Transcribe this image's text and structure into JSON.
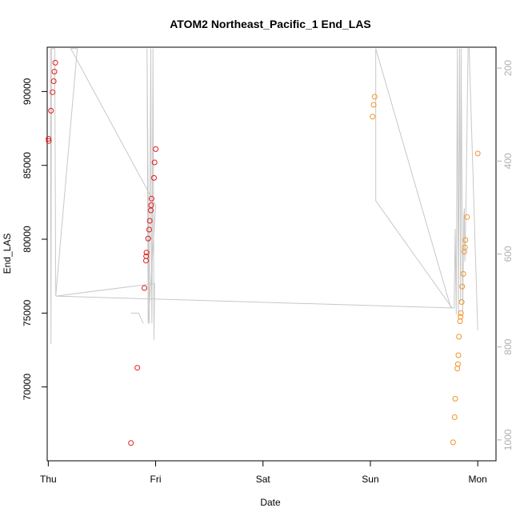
{
  "chart_data": {
    "type": "scatter",
    "title": "ATOM2 Northeast_Pacific_1 End_LAS",
    "xlabel": "Date",
    "ylabel": "End_LAS",
    "x_ticks": [
      "Thu",
      "Fri",
      "Sat",
      "Sun",
      "Mon"
    ],
    "y_ticks": [
      70000,
      75000,
      80000,
      85000,
      90000
    ],
    "y2_ticks": [
      200,
      400,
      600,
      800,
      1000
    ],
    "xlim": [
      -0.01,
      4.17
    ],
    "ylim": [
      65000,
      93000
    ],
    "y2lim": [
      1045,
      155
    ],
    "colors": {
      "series1": "#e31a1c",
      "series2": "#f5922a",
      "depth_line": "#c8c8c8"
    },
    "series": [
      {
        "points": [
          {
            "x": 0.003,
            "y": 86800
          },
          {
            "x": 0.005,
            "y": 86650
          },
          {
            "x": 0.025,
            "y": 88700
          },
          {
            "x": 0.04,
            "y": 89950
          },
          {
            "x": 0.05,
            "y": 90700
          },
          {
            "x": 0.057,
            "y": 91350
          },
          {
            "x": 0.065,
            "y": 91950
          },
          {
            "x": 0.77,
            "y": 66200
          },
          {
            "x": 0.83,
            "y": 71300
          },
          {
            "x": 0.895,
            "y": 76700
          },
          {
            "x": 0.91,
            "y": 78550
          },
          {
            "x": 0.912,
            "y": 78850
          },
          {
            "x": 0.915,
            "y": 79100
          },
          {
            "x": 0.93,
            "y": 80050
          },
          {
            "x": 0.94,
            "y": 80650
          },
          {
            "x": 0.945,
            "y": 81250
          },
          {
            "x": 0.955,
            "y": 81950
          },
          {
            "x": 0.958,
            "y": 82300
          },
          {
            "x": 0.962,
            "y": 82750
          },
          {
            "x": 0.985,
            "y": 84150
          },
          {
            "x": 0.99,
            "y": 85200
          },
          {
            "x": 1.0,
            "y": 86100
          }
        ]
      },
      {
        "points": [
          {
            "x": 3.02,
            "y": 88300
          },
          {
            "x": 3.03,
            "y": 89100
          },
          {
            "x": 3.04,
            "y": 89650
          },
          {
            "x": 3.77,
            "y": 66250
          },
          {
            "x": 3.785,
            "y": 67950
          },
          {
            "x": 3.79,
            "y": 69200
          },
          {
            "x": 3.81,
            "y": 71250
          },
          {
            "x": 3.815,
            "y": 71550
          },
          {
            "x": 3.82,
            "y": 72150
          },
          {
            "x": 3.825,
            "y": 73400
          },
          {
            "x": 3.835,
            "y": 74450
          },
          {
            "x": 3.84,
            "y": 74750
          },
          {
            "x": 3.843,
            "y": 75000
          },
          {
            "x": 3.85,
            "y": 75750
          },
          {
            "x": 3.855,
            "y": 76800
          },
          {
            "x": 3.865,
            "y": 77650
          },
          {
            "x": 3.875,
            "y": 79150
          },
          {
            "x": 3.88,
            "y": 79450
          },
          {
            "x": 3.885,
            "y": 79950
          },
          {
            "x": 3.9,
            "y": 81500
          },
          {
            "x": 4.0,
            "y": 85800
          }
        ]
      }
    ],
    "depth_line": [
      [
        0.02,
        92900
      ],
      [
        0.025,
        72900
      ],
      [
        0.03,
        92900
      ],
      [
        0.06,
        92900
      ],
      [
        0.07,
        76150
      ],
      [
        0.27,
        92900
      ],
      [
        0.21,
        92900
      ],
      [
        1.0,
        82300
      ],
      [
        0.93,
        74300
      ],
      [
        0.92,
        92900
      ],
      [
        0.94,
        74300
      ],
      [
        0.955,
        92900
      ],
      [
        0.96,
        78900
      ],
      [
        0.965,
        74300
      ],
      [
        0.975,
        92900
      ],
      [
        0.985,
        73200
      ],
      [
        0.99,
        77000
      ],
      [
        0.07,
        76150
      ],
      [
        3.75,
        75350
      ],
      [
        3.05,
        92900
      ],
      [
        3.05,
        82600
      ],
      [
        3.76,
        75350
      ],
      [
        3.78,
        75350
      ],
      [
        3.79,
        80700
      ],
      [
        3.8,
        74900
      ],
      [
        3.81,
        92900
      ],
      [
        3.82,
        74700
      ],
      [
        3.83,
        92900
      ],
      [
        3.84,
        75800
      ],
      [
        3.845,
        92900
      ],
      [
        3.86,
        75000
      ],
      [
        3.87,
        81500
      ],
      [
        3.875,
        82100
      ],
      [
        3.88,
        78500
      ],
      [
        3.89,
        82100
      ],
      [
        3.91,
        92900
      ],
      [
        3.92,
        92900
      ],
      [
        4.0,
        73850
      ]
    ],
    "depth_line_start": [
      [
        0.77,
        75000
      ],
      [
        0.84,
        75000
      ],
      [
        0.885,
        74300
      ]
    ]
  }
}
